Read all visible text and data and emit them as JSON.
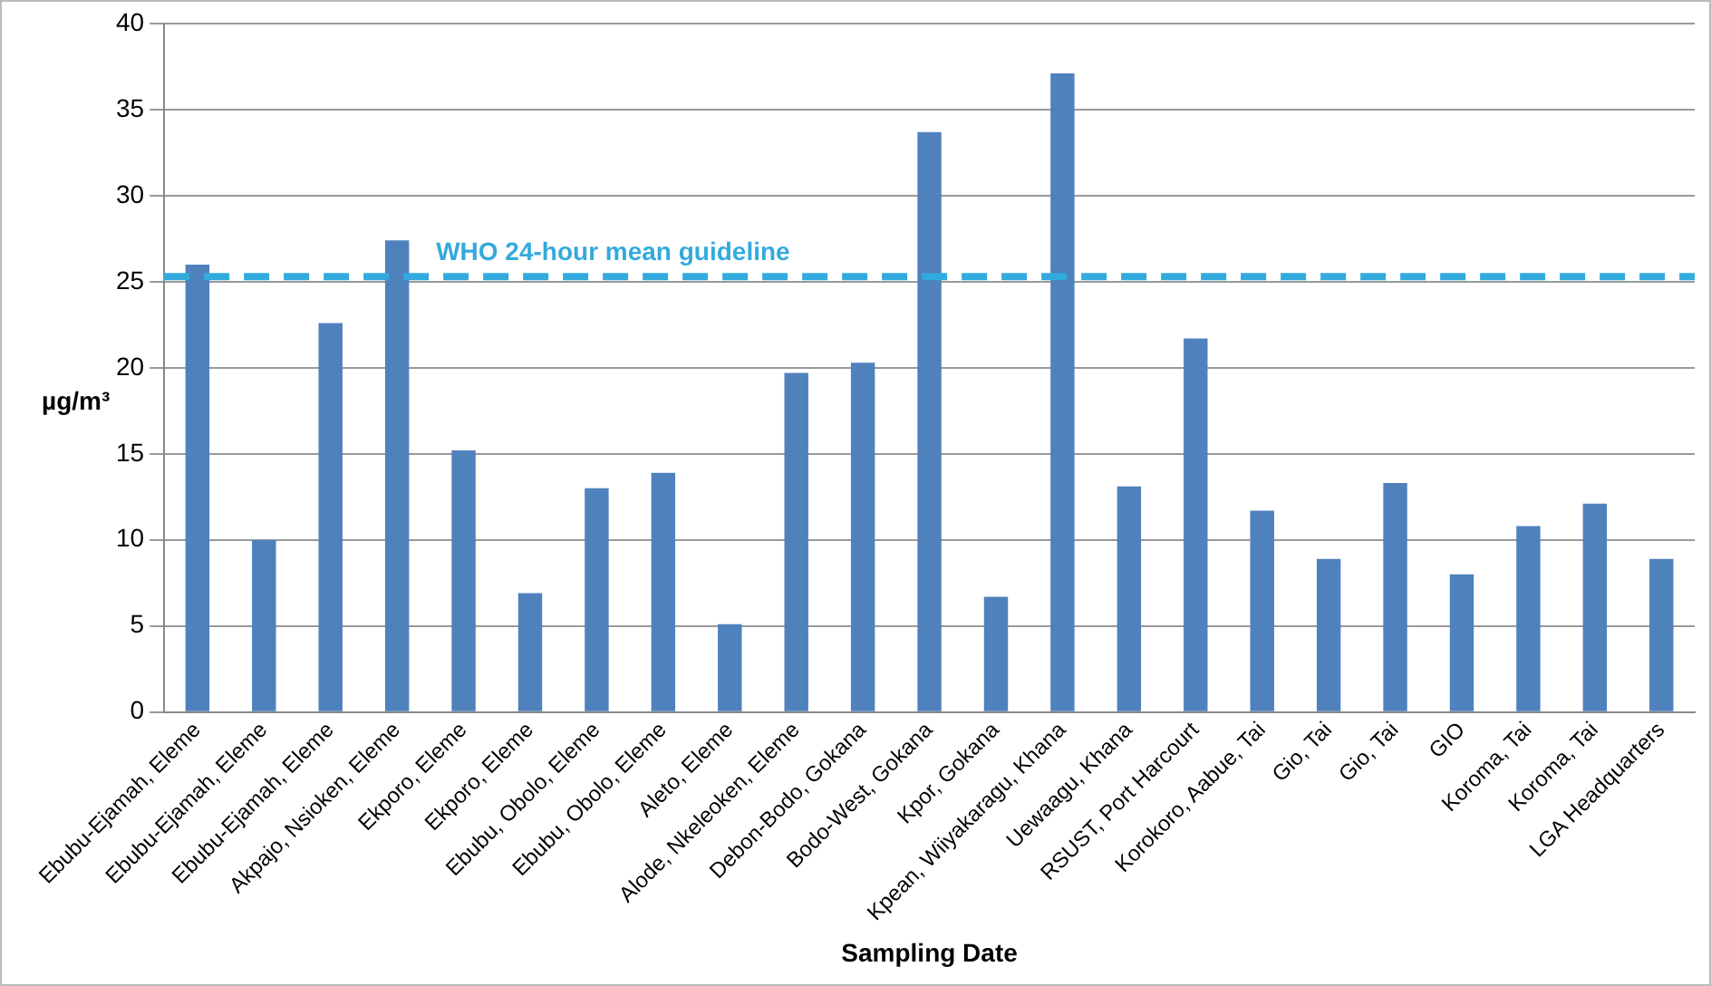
{
  "chart_data": {
    "type": "bar",
    "xlabel": "Sampling Date",
    "ylabel": "µg/m³",
    "categories": [
      "Ebubu-Ejamah, Eleme",
      "Ebubu-Ejamah, Eleme",
      "Ebubu-Ejamah, Eleme",
      "Akpajo, Nsioken, Eleme",
      "Ekporo, Eleme",
      "Ekporo, Eleme",
      "Ebubu, Obolo, Eleme",
      "Ebubu, Obolo, Eleme",
      "Aleto, Eleme",
      "Alode, Nkeleoken, Eleme",
      "Debon-Bodo, Gokana",
      "Bodo-West, Gokana",
      "Kpor, Gokana",
      "Kpean, Wiiyakaragu, Khana",
      "Uewaagu, Khana",
      "RSUST, Port Harcourt",
      "Korokoro, Aabue, Tai",
      "Gio, Tai",
      "Gio, Tai",
      "GIO",
      "Koroma, Tai",
      "Koroma, Tai",
      "LGA Headquarters"
    ],
    "values": [
      26.0,
      10.0,
      22.6,
      27.4,
      15.2,
      6.9,
      13.0,
      13.9,
      5.1,
      19.7,
      20.3,
      33.7,
      6.7,
      37.1,
      13.1,
      21.7,
      11.7,
      8.9,
      13.3,
      8.0,
      10.8,
      12.1,
      8.9
    ],
    "color": "#4f81bd",
    "ylim": [
      0,
      40
    ],
    "yticks": [
      0,
      5,
      10,
      15,
      20,
      25,
      30,
      35,
      40
    ],
    "grid": "y",
    "ref_lines": [
      {
        "axis": "y",
        "value": 25.3,
        "label": "WHO 24-hour mean guideline",
        "color": "#33aadd",
        "line_style": "dashed"
      }
    ]
  }
}
